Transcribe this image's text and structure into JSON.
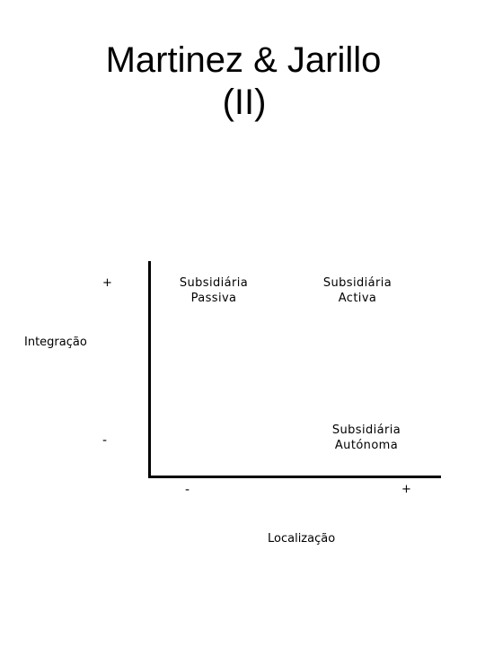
{
  "title": {
    "line1": "Martinez & Jarillo",
    "line2": "(II)"
  },
  "y_axis": {
    "label": "Integração",
    "high": "+",
    "low": "-"
  },
  "x_axis": {
    "label": "Localização",
    "low": "-",
    "high": "+"
  },
  "quadrants": {
    "passiva": {
      "line1": "Subsidiária",
      "line2": "Passiva"
    },
    "activa": {
      "line1": "Subsidiária",
      "line2": "Activa"
    },
    "autonoma": {
      "line1": "Subsidiária",
      "line2": "Autónoma"
    }
  },
  "colors": {
    "background": "#ffffff",
    "ink": "#000000"
  }
}
